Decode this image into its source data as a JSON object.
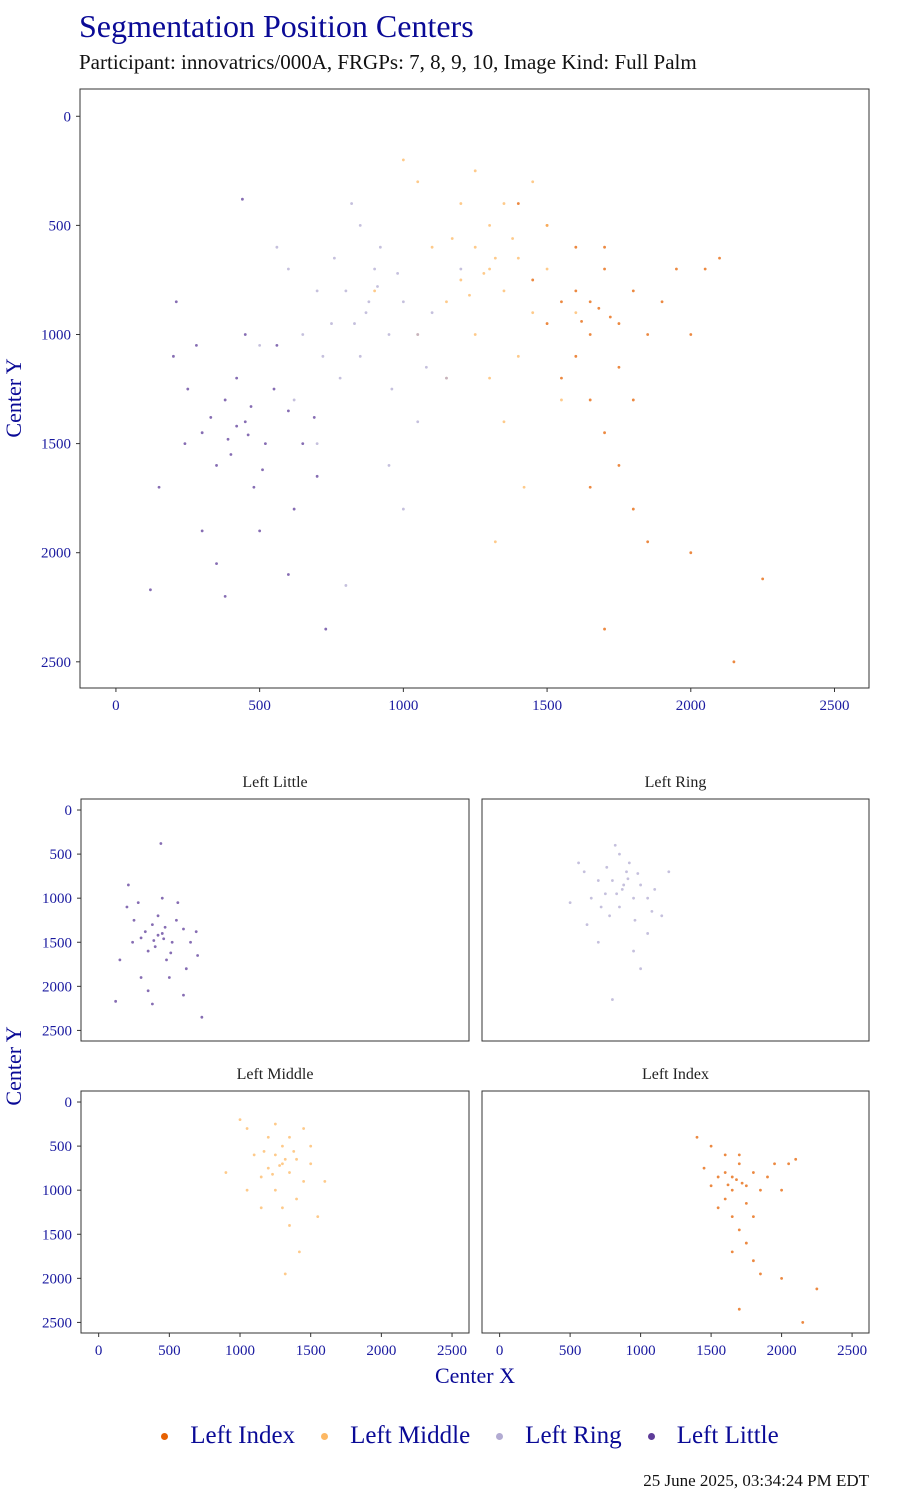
{
  "title": "Segmentation Position Centers",
  "subtitle": "Participant: innovatrics/000A, FRGPs: 7, 8, 9, 10, Image Kind: Full Palm",
  "timestamp": "25 June 2025, 03:34:24 PM EDT",
  "chart_data": [
    {
      "type": "scatter",
      "panel": "combined",
      "xlabel": "",
      "ylabel": "Center Y",
      "xlim": [
        -125,
        2620
      ],
      "ylim": [
        2620,
        -125
      ],
      "y_reversed": true,
      "xticks": [
        0,
        500,
        1000,
        1500,
        2000,
        2500
      ],
      "yticks": [
        0,
        500,
        1000,
        1500,
        2000,
        2500
      ],
      "grid": false
    },
    {
      "type": "scatter",
      "panel": "faceted",
      "facets": [
        "Left Little",
        "Left Ring",
        "Left Middle",
        "Left Index"
      ],
      "xlabel": "Center X",
      "ylabel": "Center Y",
      "xlim": [
        -125,
        2620
      ],
      "ylim": [
        2620,
        -125
      ],
      "y_reversed": true,
      "xticks": [
        0,
        500,
        1000,
        1500,
        2000,
        2500
      ],
      "yticks": [
        0,
        500,
        1000,
        1500,
        2000,
        2500
      ],
      "grid": false
    }
  ],
  "series": [
    {
      "name": "Left Index",
      "color": "#e66101",
      "points": [
        [
          1680,
          880
        ],
        [
          1600,
          800
        ],
        [
          1750,
          950
        ],
        [
          1650,
          1000
        ],
        [
          1700,
          700
        ],
        [
          1550,
          850
        ],
        [
          1800,
          800
        ],
        [
          1600,
          1100
        ],
        [
          1750,
          1150
        ],
        [
          1500,
          950
        ],
        [
          1850,
          1000
        ],
        [
          1700,
          600
        ],
        [
          1600,
          600
        ],
        [
          1900,
          850
        ],
        [
          1650,
          1300
        ],
        [
          1800,
          1300
        ],
        [
          1450,
          750
        ],
        [
          1550,
          1200
        ],
        [
          1950,
          700
        ],
        [
          1700,
          1450
        ],
        [
          1500,
          500
        ],
        [
          1750,
          1600
        ],
        [
          1650,
          1700
        ],
        [
          1800,
          1800
        ],
        [
          2000,
          1000
        ],
        [
          2050,
          700
        ],
        [
          1400,
          400
        ],
        [
          2100,
          650
        ],
        [
          1850,
          1950
        ],
        [
          2000,
          2000
        ],
        [
          2250,
          2120
        ],
        [
          1700,
          2350
        ],
        [
          1650,
          850
        ],
        [
          1720,
          920
        ],
        [
          1620,
          940
        ],
        [
          2150,
          2500
        ]
      ]
    },
    {
      "name": "Left Middle",
      "color": "#fdb863",
      "points": [
        [
          1300,
          700
        ],
        [
          1250,
          600
        ],
        [
          1350,
          800
        ],
        [
          1200,
          750
        ],
        [
          1400,
          650
        ],
        [
          1300,
          500
        ],
        [
          1150,
          850
        ],
        [
          1450,
          900
        ],
        [
          1250,
          1000
        ],
        [
          1100,
          600
        ],
        [
          1500,
          700
        ],
        [
          1350,
          400
        ],
        [
          1200,
          400
        ],
        [
          1050,
          300
        ],
        [
          1400,
          1100
        ],
        [
          1300,
          1200
        ],
        [
          1150,
          1200
        ],
        [
          1500,
          500
        ],
        [
          1600,
          900
        ],
        [
          1050,
          1000
        ],
        [
          1250,
          250
        ],
        [
          1450,
          300
        ],
        [
          900,
          800
        ],
        [
          1350,
          1400
        ],
        [
          1550,
          1300
        ],
        [
          1280,
          720
        ],
        [
          1320,
          650
        ],
        [
          1230,
          820
        ],
        [
          1380,
          560
        ],
        [
          1170,
          560
        ],
        [
          1000,
          200
        ],
        [
          1420,
          1700
        ],
        [
          1320,
          1950
        ]
      ]
    },
    {
      "name": "Left Ring",
      "color": "#b2abd2",
      "points": [
        [
          870,
          900
        ],
        [
          800,
          800
        ],
        [
          950,
          1000
        ],
        [
          750,
          950
        ],
        [
          900,
          700
        ],
        [
          1000,
          850
        ],
        [
          850,
          1100
        ],
        [
          700,
          800
        ],
        [
          1050,
          1000
        ],
        [
          920,
          600
        ],
        [
          650,
          1000
        ],
        [
          780,
          1200
        ],
        [
          960,
          1250
        ],
        [
          1100,
          900
        ],
        [
          600,
          700
        ],
        [
          850,
          500
        ],
        [
          820,
          400
        ],
        [
          1150,
          1200
        ],
        [
          500,
          1050
        ],
        [
          700,
          1500
        ],
        [
          950,
          1600
        ],
        [
          1000,
          1800
        ],
        [
          880,
          850
        ],
        [
          830,
          950
        ],
        [
          910,
          780
        ],
        [
          760,
          650
        ],
        [
          1200,
          700
        ],
        [
          620,
          1300
        ],
        [
          1050,
          1400
        ],
        [
          800,
          2150
        ],
        [
          1080,
          1150
        ],
        [
          560,
          600
        ],
        [
          980,
          720
        ],
        [
          720,
          1100
        ]
      ]
    },
    {
      "name": "Left Little",
      "color": "#5e3c99",
      "points": [
        [
          450,
          1400
        ],
        [
          380,
          1300
        ],
        [
          520,
          1500
        ],
        [
          300,
          1450
        ],
        [
          600,
          1350
        ],
        [
          420,
          1200
        ],
        [
          350,
          1600
        ],
        [
          480,
          1700
        ],
        [
          250,
          1250
        ],
        [
          550,
          1250
        ],
        [
          400,
          1550
        ],
        [
          650,
          1500
        ],
        [
          200,
          1100
        ],
        [
          500,
          1900
        ],
        [
          300,
          1900
        ],
        [
          700,
          1650
        ],
        [
          150,
          1700
        ],
        [
          450,
          1000
        ],
        [
          280,
          1050
        ],
        [
          600,
          2100
        ],
        [
          350,
          2050
        ],
        [
          560,
          1050
        ],
        [
          420,
          1420
        ],
        [
          470,
          1330
        ],
        [
          330,
          1380
        ],
        [
          510,
          1620
        ],
        [
          240,
          1500
        ],
        [
          690,
          1380
        ],
        [
          120,
          2170
        ],
        [
          440,
          380
        ],
        [
          730,
          2350
        ],
        [
          380,
          2200
        ],
        [
          210,
          850
        ],
        [
          620,
          1800
        ],
        [
          460,
          1460
        ],
        [
          390,
          1480
        ]
      ]
    }
  ]
}
